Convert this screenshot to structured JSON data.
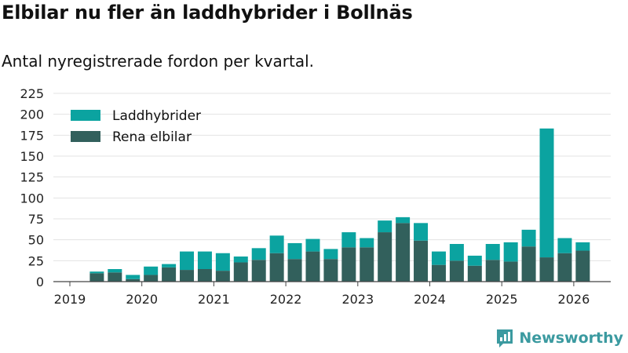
{
  "header": {
    "title": "Elbilar nu fler än laddhybrider i Bollnäs",
    "subtitle": "Antal nyregistrerade fordon per kvartal."
  },
  "brand": {
    "name": "Newsworthy"
  },
  "colors": {
    "laddhybrider": "#0ba3a0",
    "rena_elbilar": "#32605c",
    "grid": "#e3e3e3",
    "axis": "#444444"
  },
  "chart_data": {
    "type": "bar",
    "stacked": true,
    "ylim": [
      0,
      225
    ],
    "yticks": [
      0,
      25,
      50,
      75,
      100,
      125,
      150,
      175,
      200,
      225
    ],
    "grid": true,
    "legend_position": "top-left",
    "x_tick_labels": [
      "2019",
      "2020",
      "2021",
      "2022",
      "2023",
      "2024",
      "2025",
      "2026"
    ],
    "categories": [
      "2019 Q2",
      "2019 Q3",
      "2019 Q4",
      "2020 Q1",
      "2020 Q2",
      "2020 Q3",
      "2020 Q4",
      "2021 Q1",
      "2021 Q2",
      "2021 Q3",
      "2021 Q4",
      "2022 Q1",
      "2022 Q2",
      "2022 Q3",
      "2022 Q4",
      "2023 Q1",
      "2023 Q2",
      "2023 Q3",
      "2023 Q4",
      "2024 Q1",
      "2024 Q2",
      "2024 Q3",
      "2024 Q4",
      "2025 Q1",
      "2025 Q2",
      "2025 Q3",
      "2025 Q4",
      "2026 Q1"
    ],
    "series": [
      {
        "name": "Rena elbilar",
        "values": [
          10,
          11,
          3,
          8,
          17,
          14,
          15,
          13,
          23,
          26,
          34,
          27,
          36,
          27,
          41,
          41,
          59,
          70,
          49,
          20,
          25,
          19,
          26,
          24,
          42,
          29,
          34,
          37
        ]
      },
      {
        "name": "Laddhybrider",
        "values": [
          2,
          4,
          5,
          10,
          4,
          22,
          21,
          21,
          7,
          14,
          21,
          19,
          15,
          12,
          18,
          11,
          14,
          7,
          21,
          16,
          20,
          12,
          19,
          23,
          20,
          154,
          18,
          10
        ]
      }
    ]
  }
}
